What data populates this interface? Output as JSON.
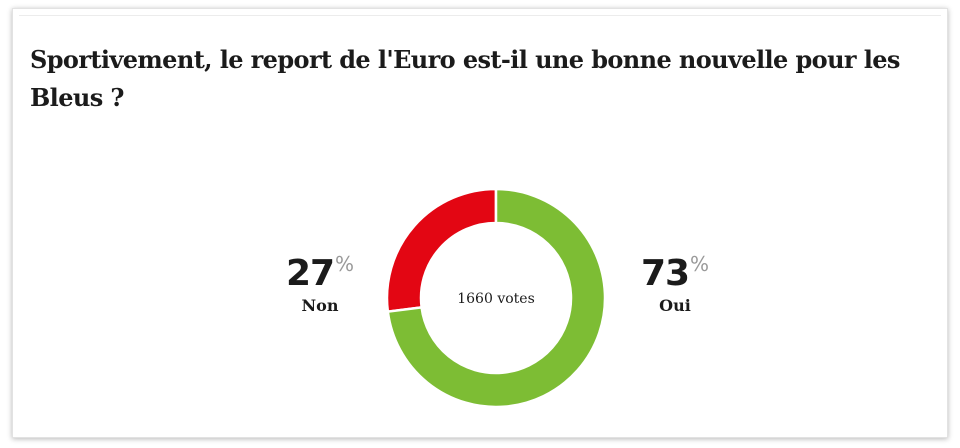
{
  "poll": {
    "question": "Sportivement, le report de l'Euro est-il une bonne nouvelle pour les Bleus ?",
    "total_votes_label": "1660 votes",
    "percent_sign": "%"
  },
  "colors": {
    "non": "#e30613",
    "oui": "#7dbd34"
  },
  "chart_data": {
    "type": "pie",
    "style": "donut",
    "title": "Sportivement, le report de l'Euro est-il une bonne nouvelle pour les Bleus ?",
    "center_label": "1660 votes",
    "categories": [
      "Non",
      "Oui"
    ],
    "values": [
      27,
      73
    ],
    "value_labels": [
      "27",
      "73"
    ],
    "unit": "%",
    "colors": [
      "#e30613",
      "#7dbd34"
    ],
    "start": "top",
    "direction": "counter-clockwise for Non, clockwise for Oui",
    "legend": "side labels"
  }
}
